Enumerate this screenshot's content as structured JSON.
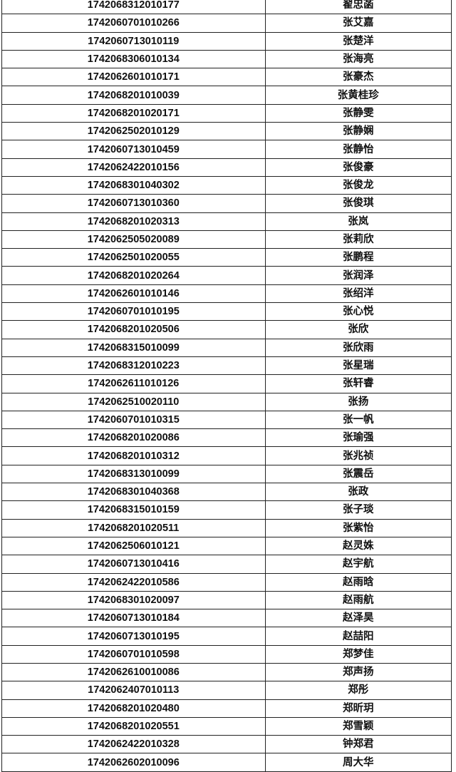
{
  "rows": [
    {
      "id": "1742068312010177",
      "name": "翟忠菡"
    },
    {
      "id": "1742060701010266",
      "name": "张艾嘉"
    },
    {
      "id": "1742060713010119",
      "name": "张楚洋"
    },
    {
      "id": "1742068306010134",
      "name": "张海亮"
    },
    {
      "id": "1742062601010171",
      "name": "张豪杰"
    },
    {
      "id": "1742068201010039",
      "name": "张黄桂珍"
    },
    {
      "id": "1742068201020171",
      "name": "张静雯"
    },
    {
      "id": "1742062502010129",
      "name": "张静娴"
    },
    {
      "id": "1742060713010459",
      "name": "张静怡"
    },
    {
      "id": "1742062422010156",
      "name": "张俊豪"
    },
    {
      "id": "1742068301040302",
      "name": "张俊龙"
    },
    {
      "id": "1742060713010360",
      "name": "张俊琪"
    },
    {
      "id": "1742068201020313",
      "name": "张岚"
    },
    {
      "id": "1742062505020089",
      "name": "张莉欣"
    },
    {
      "id": "1742062501020055",
      "name": "张鹏程"
    },
    {
      "id": "1742068201020264",
      "name": "张润泽"
    },
    {
      "id": "1742062601010146",
      "name": "张绍洋"
    },
    {
      "id": "1742060701010195",
      "name": "张心悦"
    },
    {
      "id": "1742068201020506",
      "name": "张欣"
    },
    {
      "id": "1742068315010099",
      "name": "张欣雨"
    },
    {
      "id": "1742068312010223",
      "name": "张星瑞"
    },
    {
      "id": "1742062611010126",
      "name": "张轩睿"
    },
    {
      "id": "1742062510020110",
      "name": "张扬"
    },
    {
      "id": "1742060701010315",
      "name": "张一帆"
    },
    {
      "id": "1742068201020086",
      "name": "张瑜强"
    },
    {
      "id": "1742068201010312",
      "name": "张兆祯"
    },
    {
      "id": "1742068313010099",
      "name": "张震岳"
    },
    {
      "id": "1742068301040368",
      "name": "张政"
    },
    {
      "id": "1742068315010159",
      "name": "张子琰"
    },
    {
      "id": "1742068201020511",
      "name": "张紫怡"
    },
    {
      "id": "1742062506010121",
      "name": "赵灵姝"
    },
    {
      "id": "1742060713010416",
      "name": "赵宇航"
    },
    {
      "id": "1742062422010586",
      "name": "赵雨晗"
    },
    {
      "id": "1742068301020097",
      "name": "赵雨航"
    },
    {
      "id": "1742060713010184",
      "name": "赵泽昊"
    },
    {
      "id": "1742060713010195",
      "name": "赵喆阳"
    },
    {
      "id": "1742060701010598",
      "name": "郑梦佳"
    },
    {
      "id": "1742062610010086",
      "name": "郑声扬"
    },
    {
      "id": "1742062407010113",
      "name": "郑彤"
    },
    {
      "id": "1742068201020480",
      "name": "郑昕玥"
    },
    {
      "id": "1742068201020551",
      "name": "郑雪颖"
    },
    {
      "id": "1742062422010328",
      "name": "钟郑君"
    },
    {
      "id": "1742062602010096",
      "name": "周大华"
    }
  ]
}
